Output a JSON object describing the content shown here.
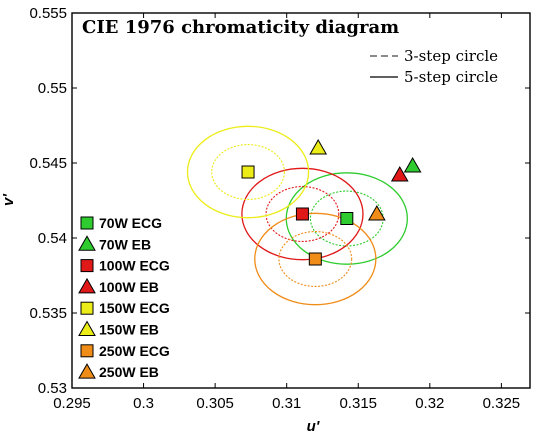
{
  "chart_data": {
    "type": "scatter",
    "title": "CIE 1976 chromaticity diagram",
    "xlabel": "u'",
    "ylabel": "v'",
    "xlim": [
      0.295,
      0.327
    ],
    "ylim": [
      0.53,
      0.555
    ],
    "xticks": [
      "0.295",
      "0.3",
      "0.305",
      "0.31",
      "0.315",
      "0.32",
      "0.325"
    ],
    "yticks": [
      "0.53",
      "0.535",
      "0.54",
      "0.545",
      "0.55",
      "0.555"
    ],
    "grid": false,
    "circle_legend": [
      {
        "label": "3-step circle",
        "style": "dashed"
      },
      {
        "label": "5-step circle",
        "style": "solid"
      }
    ],
    "legend_position": "left",
    "series": [
      {
        "name": "70W ECG",
        "marker": "square",
        "color": "#2ecc2e",
        "x": 0.3142,
        "y": 0.5413,
        "circles": [
          0.00254,
          0.00423
        ]
      },
      {
        "name": "70W EB",
        "marker": "triangle",
        "color": "#2ecc2e",
        "x": 0.3188,
        "y": 0.5448,
        "circles": null
      },
      {
        "name": "100W ECG",
        "marker": "square",
        "color": "#e01818",
        "x": 0.3111,
        "y": 0.5416,
        "circles": [
          0.00254,
          0.00423
        ]
      },
      {
        "name": "100W EB",
        "marker": "triangle",
        "color": "#e01818",
        "x": 0.3179,
        "y": 0.5442,
        "circles": null
      },
      {
        "name": "150W ECG",
        "marker": "square",
        "color": "#ecec18",
        "x": 0.3073,
        "y": 0.5444,
        "circles": [
          0.00254,
          0.00423
        ]
      },
      {
        "name": "150W EB",
        "marker": "triangle",
        "color": "#ecec18",
        "x": 0.3122,
        "y": 0.546,
        "circles": null
      },
      {
        "name": "250W ECG",
        "marker": "square",
        "color": "#f08c18",
        "x": 0.312,
        "y": 0.5386,
        "circles": [
          0.00254,
          0.00423
        ]
      },
      {
        "name": "250W EB",
        "marker": "triangle",
        "color": "#f08c18",
        "x": 0.3163,
        "y": 0.5416,
        "circles": null
      }
    ]
  }
}
